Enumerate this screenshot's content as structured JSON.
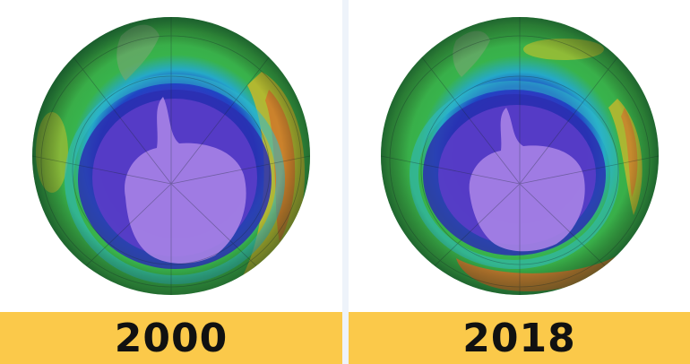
{
  "panels": [
    {
      "year": "2000",
      "label_color": "#fbc94a"
    },
    {
      "year": "2018",
      "label_color": "#fbc94a"
    }
  ],
  "colors": {
    "hole_core": "#7a4fd0",
    "hole_edge": "#2a2fb0",
    "ring_cyan": "#2fb9c8",
    "ring_green": "#33b24a",
    "ring_yellow": "#c9c32b",
    "ring_orange": "#d0782c",
    "continent": "#a783e6"
  }
}
